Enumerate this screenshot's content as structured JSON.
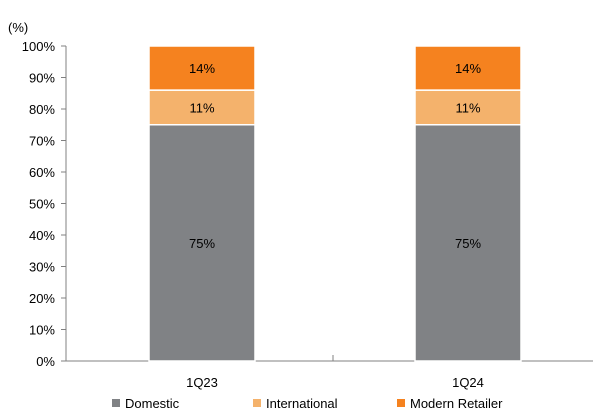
{
  "chart_data": {
    "type": "bar",
    "stacked": true,
    "unit_label": "(%)",
    "categories": [
      "1Q23",
      "1Q24"
    ],
    "series": [
      {
        "name": "Domestic",
        "values": [
          75,
          75
        ],
        "labels": [
          "75%",
          "75%"
        ],
        "color": "#808285"
      },
      {
        "name": "International",
        "values": [
          11,
          11
        ],
        "labels": [
          "11%",
          "11%"
        ],
        "color": "#F4B26C"
      },
      {
        "name": "Modern Retailer",
        "values": [
          14,
          14
        ],
        "labels": [
          "14%",
          "14%"
        ],
        "color": "#F5821F"
      }
    ],
    "ylim": [
      0,
      100
    ],
    "y_ticks": [
      0,
      10,
      20,
      30,
      40,
      50,
      60,
      70,
      80,
      90,
      100
    ],
    "y_tick_labels": [
      "0%",
      "10%",
      "20%",
      "30%",
      "40%",
      "50%",
      "60%",
      "70%",
      "80%",
      "90%",
      "100%"
    ],
    "grid": false,
    "legend_position": "bottom"
  }
}
